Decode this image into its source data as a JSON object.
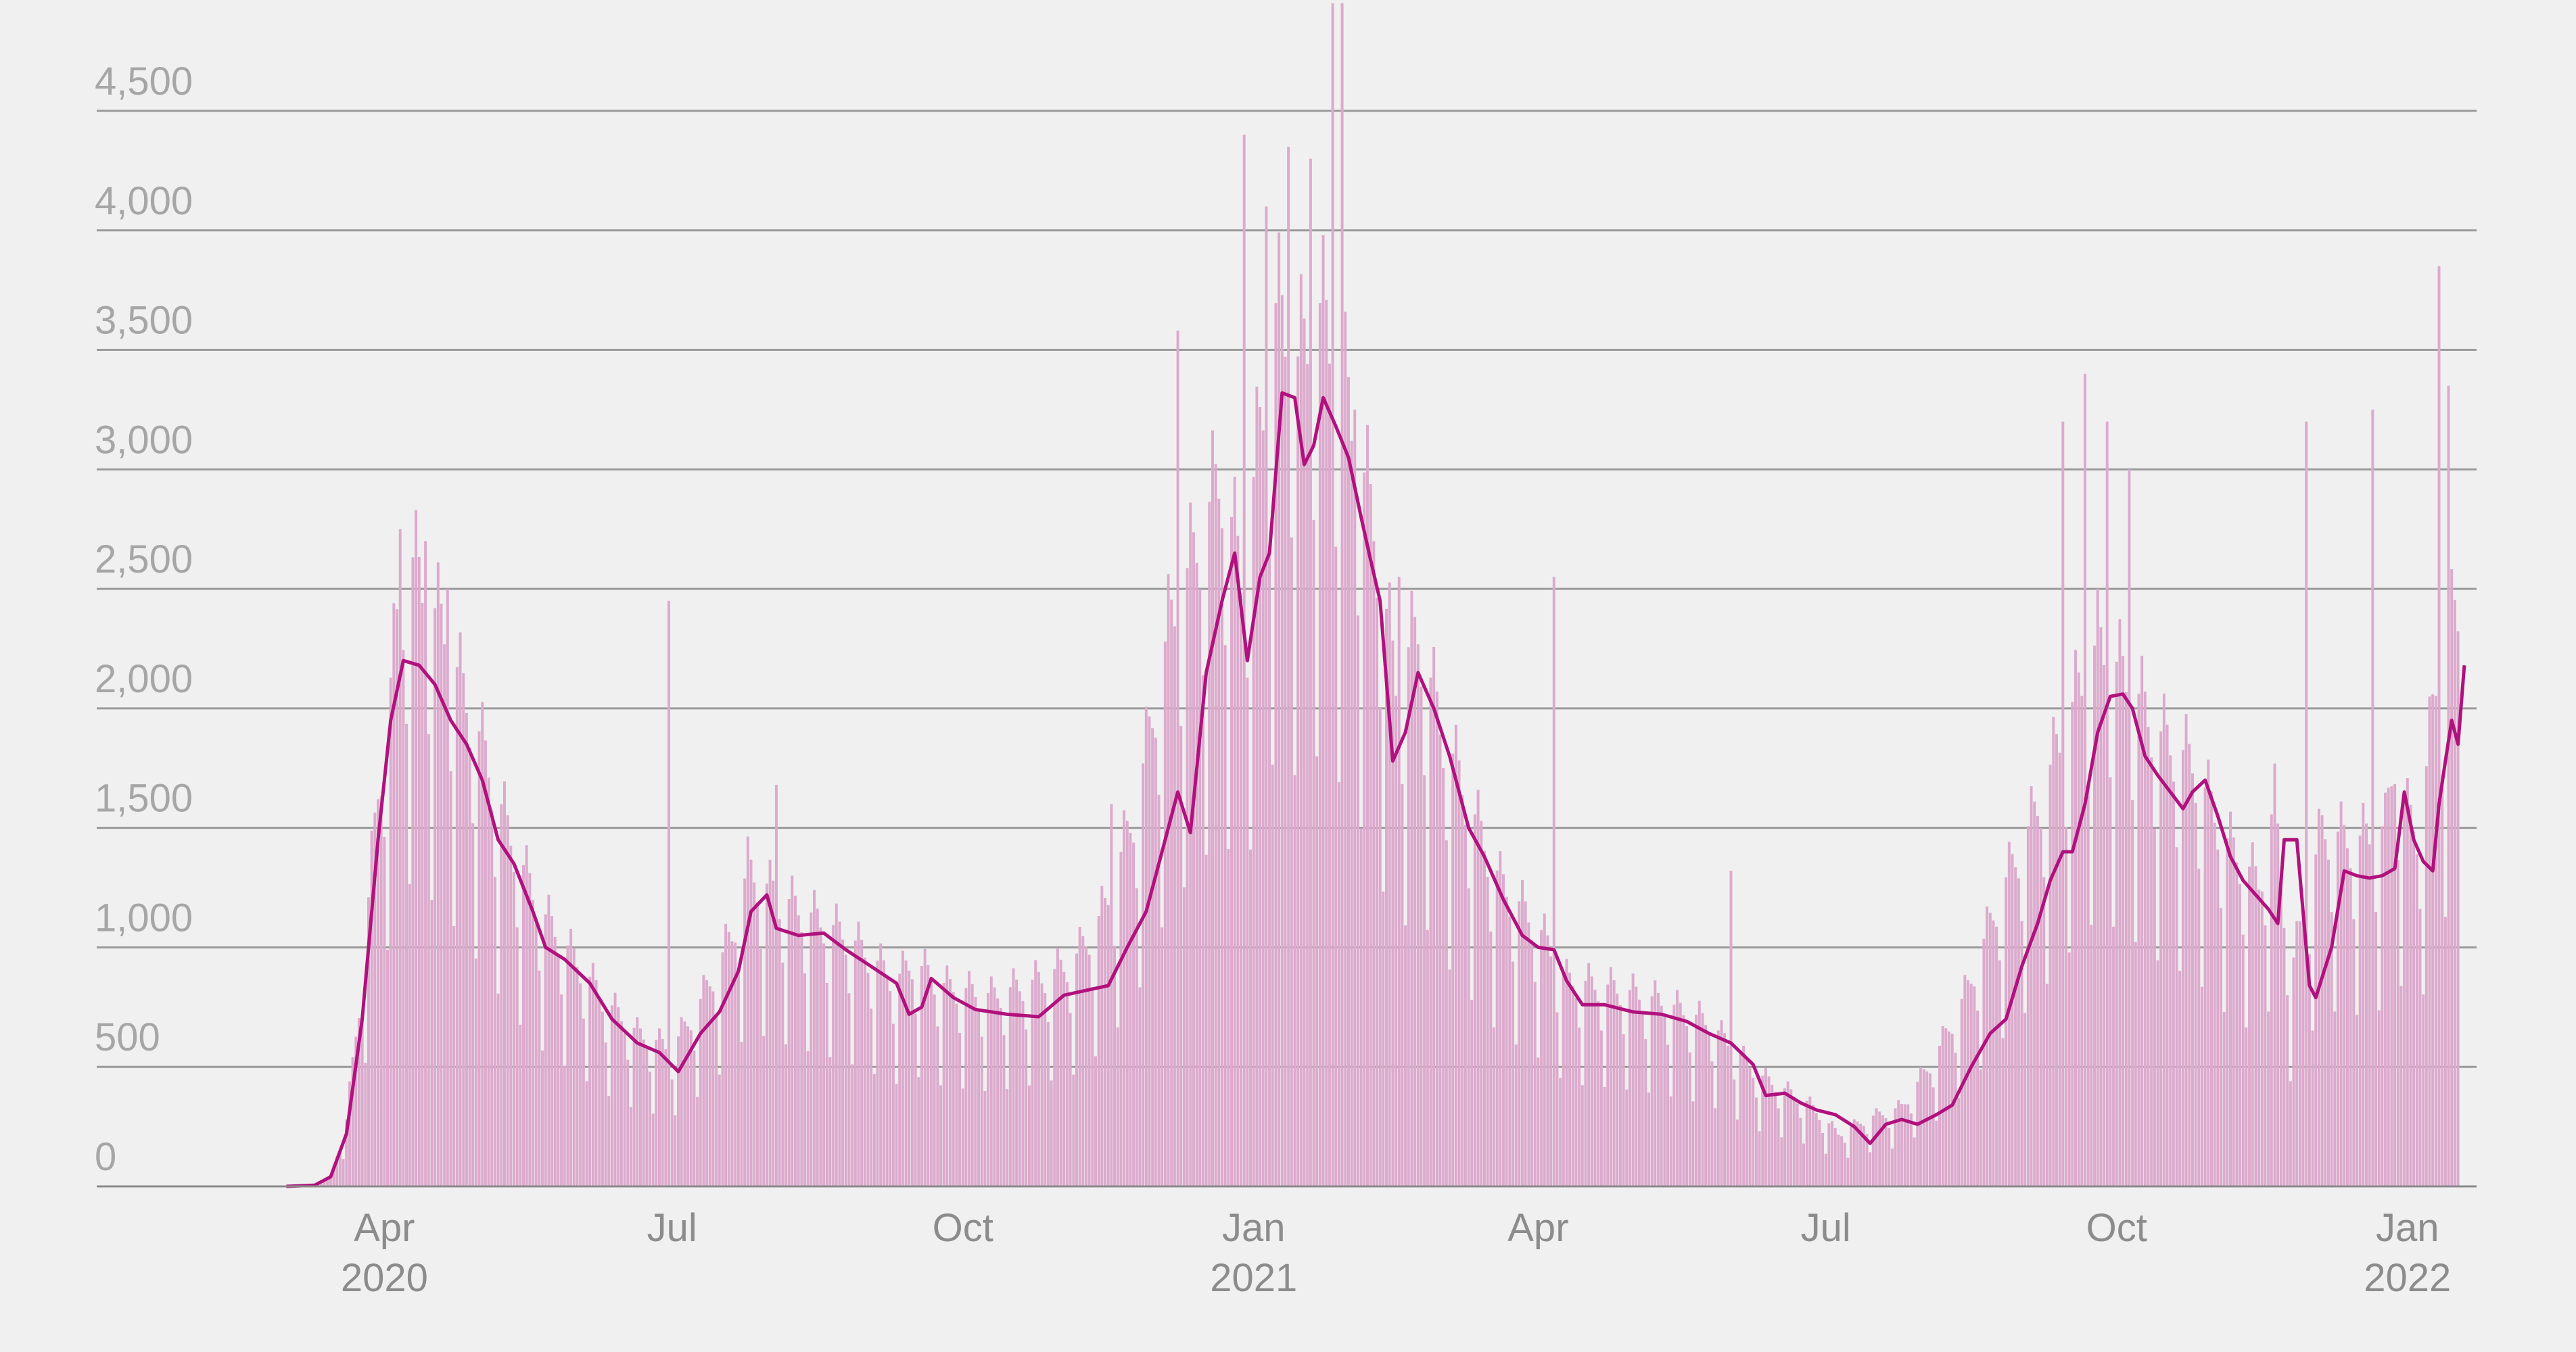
{
  "chart_data": {
    "type": "bar",
    "title": "",
    "xlabel": "",
    "ylabel": "",
    "ylim": [
      0,
      5000
    ],
    "grid": true,
    "legend": "none",
    "x_range": [
      "2020-01-01",
      "2022-01-31"
    ],
    "y_ticks": [
      {
        "value": 0,
        "label": "0"
      },
      {
        "value": 500,
        "label": "500"
      },
      {
        "value": 1000,
        "label": "1,000"
      },
      {
        "value": 1500,
        "label": "1,500"
      },
      {
        "value": 2000,
        "label": "2,000"
      },
      {
        "value": 2500,
        "label": "2,500"
      },
      {
        "value": 3000,
        "label": "3,000"
      },
      {
        "value": 3500,
        "label": "3,500"
      },
      {
        "value": 4000,
        "label": "4,000"
      },
      {
        "value": 4500,
        "label": "4,500"
      }
    ],
    "x_ticks": [
      {
        "date": "2020-04-01",
        "month": "Apr",
        "year": "2020"
      },
      {
        "date": "2020-07-01",
        "month": "Jul",
        "year": ""
      },
      {
        "date": "2020-10-01",
        "month": "Oct",
        "year": ""
      },
      {
        "date": "2021-01-01",
        "month": "Jan",
        "year": "2021"
      },
      {
        "date": "2021-04-01",
        "month": "Apr",
        "year": ""
      },
      {
        "date": "2021-07-01",
        "month": "Jul",
        "year": ""
      },
      {
        "date": "2021-10-01",
        "month": "Oct",
        "year": ""
      },
      {
        "date": "2022-01-01",
        "month": "Jan",
        "year": "2022"
      }
    ],
    "series": [
      {
        "kind": "daily-bars",
        "data_start": "2020-03-10",
        "data_end": "2022-01-17",
        "color": "#dcaacd",
        "samples": [
          [
            "2020-03-10",
            5
          ],
          [
            "2020-03-15",
            40
          ],
          [
            "2020-03-20",
            250
          ],
          [
            "2020-03-25",
            800
          ],
          [
            "2020-03-30",
            1500
          ],
          [
            "2020-04-05",
            2100
          ],
          [
            "2020-04-10",
            2350
          ],
          [
            "2020-04-15",
            2200
          ],
          [
            "2020-04-20",
            2100
          ],
          [
            "2020-04-25",
            1900
          ],
          [
            "2020-05-01",
            1700
          ],
          [
            "2020-05-10",
            1350
          ],
          [
            "2020-05-20",
            1050
          ],
          [
            "2020-06-01",
            850
          ],
          [
            "2020-06-10",
            700
          ],
          [
            "2020-06-20",
            580
          ],
          [
            "2020-07-01",
            520
          ],
          [
            "2020-07-10",
            700
          ],
          [
            "2020-07-20",
            950
          ],
          [
            "2020-07-25",
            1200
          ],
          [
            "2020-08-01",
            1120
          ],
          [
            "2020-08-10",
            1050
          ],
          [
            "2020-08-25",
            950
          ],
          [
            "2020-09-10",
            780
          ],
          [
            "2020-09-15",
            850
          ],
          [
            "2020-09-25",
            760
          ],
          [
            "2020-10-10",
            720
          ],
          [
            "2020-10-25",
            780
          ],
          [
            "2020-11-05",
            850
          ],
          [
            "2020-11-15",
            1050
          ],
          [
            "2020-11-25",
            1450
          ],
          [
            "2020-12-05",
            2100
          ],
          [
            "2020-12-15",
            2450
          ],
          [
            "2020-12-22",
            2700
          ],
          [
            "2020-12-28",
            2300
          ],
          [
            "2021-01-01",
            2650
          ],
          [
            "2021-01-08",
            3300
          ],
          [
            "2021-01-15",
            3100
          ],
          [
            "2021-01-22",
            3300
          ],
          [
            "2021-01-30",
            3000
          ],
          [
            "2021-02-08",
            2500
          ],
          [
            "2021-02-15",
            1900
          ],
          [
            "2021-02-22",
            2100
          ],
          [
            "2021-03-01",
            1750
          ],
          [
            "2021-03-10",
            1450
          ],
          [
            "2021-03-20",
            1150
          ],
          [
            "2021-04-01",
            980
          ],
          [
            "2021-04-10",
            780
          ],
          [
            "2021-04-25",
            750
          ],
          [
            "2021-05-10",
            700
          ],
          [
            "2021-05-25",
            620
          ],
          [
            "2021-06-10",
            420
          ],
          [
            "2021-06-25",
            320
          ],
          [
            "2021-07-05",
            200
          ],
          [
            "2021-07-15",
            260
          ],
          [
            "2021-07-25",
            300
          ],
          [
            "2021-08-05",
            500
          ],
          [
            "2021-08-15",
            750
          ],
          [
            "2021-08-25",
            1100
          ],
          [
            "2021-09-05",
            1400
          ],
          [
            "2021-09-15",
            1750
          ],
          [
            "2021-09-25",
            2050
          ],
          [
            "2021-10-05",
            1900
          ],
          [
            "2021-10-15",
            1700
          ],
          [
            "2021-10-25",
            1600
          ],
          [
            "2021-11-05",
            1300
          ],
          [
            "2021-11-15",
            1150
          ],
          [
            "2021-11-20",
            1450
          ],
          [
            "2021-11-25",
            800
          ],
          [
            "2021-12-05",
            1350
          ],
          [
            "2021-12-15",
            1300
          ],
          [
            "2021-12-25",
            1350
          ],
          [
            "2021-12-28",
            1650
          ],
          [
            "2022-01-01",
            1400
          ],
          [
            "2022-01-05",
            1350
          ],
          [
            "2022-01-10",
            1900
          ],
          [
            "2022-01-14",
            2100
          ],
          [
            "2022-01-17",
            2150
          ]
        ],
        "spikes": [
          [
            "2020-04-06",
            2750
          ],
          [
            "2020-04-14",
            2700
          ],
          [
            "2020-04-21",
            2500
          ],
          [
            "2020-06-30",
            2450
          ],
          [
            "2020-08-03",
            1680
          ],
          [
            "2020-11-17",
            1600
          ],
          [
            "2020-12-08",
            3580
          ],
          [
            "2020-12-29",
            4400
          ],
          [
            "2021-01-05",
            4100
          ],
          [
            "2021-01-12",
            4350
          ],
          [
            "2021-01-19",
            4300
          ],
          [
            "2021-01-26",
            4950
          ],
          [
            "2021-01-29",
            4950
          ],
          [
            "2021-02-02",
            3250
          ],
          [
            "2021-02-16",
            2550
          ],
          [
            "2021-04-06",
            2550
          ],
          [
            "2021-06-01",
            1320
          ],
          [
            "2021-09-21",
            3400
          ],
          [
            "2021-09-14",
            3200
          ],
          [
            "2021-09-28",
            3200
          ],
          [
            "2021-10-05",
            3000
          ],
          [
            "2021-11-30",
            3200
          ],
          [
            "2021-12-21",
            3250
          ],
          [
            "2022-01-11",
            3850
          ],
          [
            "2022-01-14",
            3350
          ]
        ]
      },
      {
        "kind": "rolling-average",
        "color": "#b0117d",
        "points": [
          [
            "2020-03-01",
            0
          ],
          [
            "2020-03-10",
            5
          ],
          [
            "2020-03-15",
            40
          ],
          [
            "2020-03-20",
            220
          ],
          [
            "2020-03-25",
            700
          ],
          [
            "2020-03-30",
            1450
          ],
          [
            "2020-04-03",
            1950
          ],
          [
            "2020-04-07",
            2200
          ],
          [
            "2020-04-12",
            2180
          ],
          [
            "2020-04-17",
            2100
          ],
          [
            "2020-04-22",
            1950
          ],
          [
            "2020-04-27",
            1850
          ],
          [
            "2020-05-02",
            1700
          ],
          [
            "2020-05-07",
            1450
          ],
          [
            "2020-05-12",
            1350
          ],
          [
            "2020-05-18",
            1150
          ],
          [
            "2020-05-22",
            1000
          ],
          [
            "2020-05-28",
            950
          ],
          [
            "2020-06-05",
            850
          ],
          [
            "2020-06-12",
            700
          ],
          [
            "2020-06-20",
            600
          ],
          [
            "2020-06-27",
            560
          ],
          [
            "2020-07-03",
            480
          ],
          [
            "2020-07-10",
            640
          ],
          [
            "2020-07-16",
            730
          ],
          [
            "2020-07-22",
            900
          ],
          [
            "2020-07-26",
            1150
          ],
          [
            "2020-07-31",
            1220
          ],
          [
            "2020-08-03",
            1080
          ],
          [
            "2020-08-10",
            1050
          ],
          [
            "2020-08-18",
            1060
          ],
          [
            "2020-08-25",
            990
          ],
          [
            "2020-09-02",
            920
          ],
          [
            "2020-09-10",
            850
          ],
          [
            "2020-09-14",
            720
          ],
          [
            "2020-09-18",
            750
          ],
          [
            "2020-09-21",
            870
          ],
          [
            "2020-09-28",
            790
          ],
          [
            "2020-10-05",
            740
          ],
          [
            "2020-10-15",
            720
          ],
          [
            "2020-10-25",
            710
          ],
          [
            "2020-11-02",
            800
          ],
          [
            "2020-11-09",
            820
          ],
          [
            "2020-11-16",
            840
          ],
          [
            "2020-11-22",
            1000
          ],
          [
            "2020-11-28",
            1150
          ],
          [
            "2020-12-04",
            1450
          ],
          [
            "2020-12-08",
            1650
          ],
          [
            "2020-12-12",
            1480
          ],
          [
            "2020-12-17",
            2150
          ],
          [
            "2020-12-22",
            2450
          ],
          [
            "2020-12-26",
            2650
          ],
          [
            "2020-12-30",
            2200
          ],
          [
            "2021-01-03",
            2550
          ],
          [
            "2021-01-06",
            2650
          ],
          [
            "2021-01-10",
            3320
          ],
          [
            "2021-01-14",
            3300
          ],
          [
            "2021-01-17",
            3020
          ],
          [
            "2021-01-20",
            3100
          ],
          [
            "2021-01-23",
            3300
          ],
          [
            "2021-01-27",
            3180
          ],
          [
            "2021-01-31",
            3050
          ],
          [
            "2021-02-04",
            2800
          ],
          [
            "2021-02-07",
            2620
          ],
          [
            "2021-02-10",
            2450
          ],
          [
            "2021-02-14",
            1780
          ],
          [
            "2021-02-18",
            1900
          ],
          [
            "2021-02-22",
            2150
          ],
          [
            "2021-02-27",
            2000
          ],
          [
            "2021-03-04",
            1800
          ],
          [
            "2021-03-10",
            1500
          ],
          [
            "2021-03-15",
            1380
          ],
          [
            "2021-03-21",
            1200
          ],
          [
            "2021-03-27",
            1050
          ],
          [
            "2021-04-01",
            1000
          ],
          [
            "2021-04-06",
            990
          ],
          [
            "2021-04-10",
            860
          ],
          [
            "2021-04-15",
            760
          ],
          [
            "2021-04-22",
            760
          ],
          [
            "2021-05-01",
            730
          ],
          [
            "2021-05-10",
            720
          ],
          [
            "2021-05-18",
            690
          ],
          [
            "2021-05-25",
            640
          ],
          [
            "2021-06-01",
            600
          ],
          [
            "2021-06-08",
            510
          ],
          [
            "2021-06-12",
            380
          ],
          [
            "2021-06-18",
            390
          ],
          [
            "2021-06-23",
            350
          ],
          [
            "2021-06-28",
            320
          ],
          [
            "2021-07-04",
            300
          ],
          [
            "2021-07-10",
            250
          ],
          [
            "2021-07-15",
            180
          ],
          [
            "2021-07-20",
            260
          ],
          [
            "2021-07-25",
            280
          ],
          [
            "2021-07-30",
            260
          ],
          [
            "2021-08-05",
            300
          ],
          [
            "2021-08-10",
            340
          ],
          [
            "2021-08-16",
            500
          ],
          [
            "2021-08-22",
            640
          ],
          [
            "2021-08-27",
            700
          ],
          [
            "2021-09-01",
            920
          ],
          [
            "2021-09-06",
            1100
          ],
          [
            "2021-09-10",
            1280
          ],
          [
            "2021-09-14",
            1400
          ],
          [
            "2021-09-17",
            1400
          ],
          [
            "2021-09-21",
            1600
          ],
          [
            "2021-09-25",
            1900
          ],
          [
            "2021-09-29",
            2050
          ],
          [
            "2021-10-03",
            2060
          ],
          [
            "2021-10-06",
            2000
          ],
          [
            "2021-10-10",
            1800
          ],
          [
            "2021-10-14",
            1720
          ],
          [
            "2021-10-18",
            1650
          ],
          [
            "2021-10-22",
            1580
          ],
          [
            "2021-10-25",
            1650
          ],
          [
            "2021-10-29",
            1700
          ],
          [
            "2021-11-02",
            1550
          ],
          [
            "2021-11-06",
            1380
          ],
          [
            "2021-11-10",
            1280
          ],
          [
            "2021-11-14",
            1220
          ],
          [
            "2021-11-18",
            1160
          ],
          [
            "2021-11-21",
            1100
          ],
          [
            "2021-11-23",
            1450
          ],
          [
            "2021-11-27",
            1450
          ],
          [
            "2021-12-01",
            840
          ],
          [
            "2021-12-03",
            790
          ],
          [
            "2021-12-08",
            1000
          ],
          [
            "2021-12-12",
            1320
          ],
          [
            "2021-12-16",
            1300
          ],
          [
            "2021-12-20",
            1290
          ],
          [
            "2021-12-24",
            1300
          ],
          [
            "2021-12-28",
            1330
          ],
          [
            "2021-12-31",
            1650
          ],
          [
            "2022-01-03",
            1450
          ],
          [
            "2022-01-06",
            1360
          ],
          [
            "2022-01-09",
            1320
          ],
          [
            "2022-01-11",
            1600
          ],
          [
            "2022-01-13",
            1780
          ],
          [
            "2022-01-15",
            1950
          ],
          [
            "2022-01-17",
            1850
          ],
          [
            "2022-01-19",
            2180
          ]
        ]
      }
    ]
  }
}
